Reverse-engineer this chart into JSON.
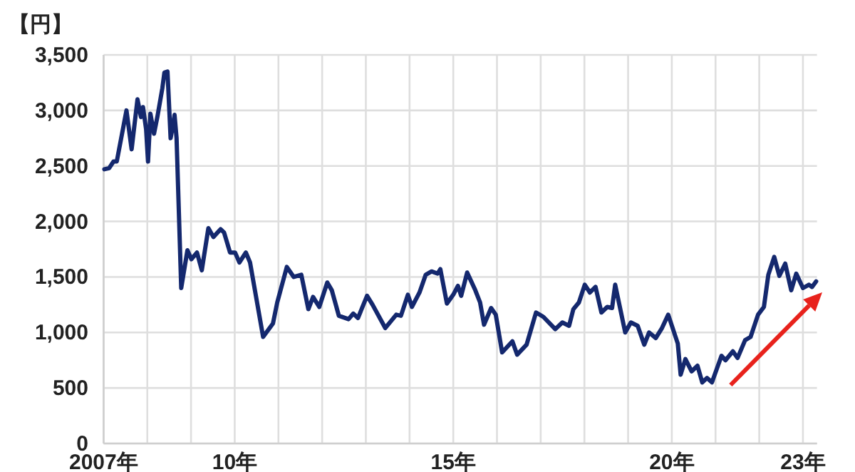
{
  "chart_data": {
    "type": "line",
    "ylabel": "【円】",
    "x": [
      "2007-01-07",
      "2007-02-16",
      "2007-03-25",
      "2007-04-21",
      "2007-07-11",
      "2007-08-23",
      "2007-10-11",
      "2007-11-09",
      "2007-11-26",
      "2007-12-22",
      "2008-01-07",
      "2008-01-27",
      "2008-02-26",
      "2008-03-25",
      "2008-05-06",
      "2008-05-23",
      "2008-06-18",
      "2008-07-14",
      "2008-08-06",
      "2008-08-16",
      "2008-09-02",
      "2008-10-11",
      "2008-12-02",
      "2009-01-04",
      "2009-02-20",
      "2009-04-01",
      "2009-05-26",
      "2009-07-07",
      "2009-09-05",
      "2009-10-04",
      "2009-11-23",
      "2010-01-04",
      "2010-02-09",
      "2010-04-04",
      "2010-05-09",
      "2010-08-26",
      "2010-11-16",
      "2010-12-22",
      "2011-03-12",
      "2011-05-09",
      "2011-07-11",
      "2011-09-08",
      "2011-10-17",
      "2011-12-08",
      "2012-02-13",
      "2012-03-22",
      "2012-05-20",
      "2012-08-09",
      "2012-09-18",
      "2012-10-27",
      "2013-01-11",
      "2013-02-26",
      "2013-06-12",
      "2013-09-12",
      "2013-10-21",
      "2013-12-18",
      "2014-01-21",
      "2014-03-25",
      "2014-05-16",
      "2014-07-04",
      "2014-08-23",
      "2014-09-15",
      "2014-11-09",
      "2015-01-01",
      "2015-02-09",
      "2015-03-08",
      "2015-04-27",
      "2015-07-04",
      "2015-08-13",
      "2015-09-15",
      "2015-11-13",
      "2015-12-22",
      "2016-02-13",
      "2016-05-09",
      "2016-06-18",
      "2016-09-05",
      "2016-11-23",
      "2017-01-24",
      "2017-05-03",
      "2017-07-01",
      "2017-08-26",
      "2017-10-01",
      "2017-11-16",
      "2018-01-04",
      "2018-02-16",
      "2018-04-04",
      "2018-05-23",
      "2018-07-11",
      "2018-08-20",
      "2018-09-15",
      "2018-12-08",
      "2019-01-24",
      "2019-03-22",
      "2019-05-16",
      "2019-06-25",
      "2019-08-20",
      "2019-10-11",
      "2019-12-02",
      "2020-02-20",
      "2020-03-15",
      "2020-04-24",
      "2020-06-15",
      "2020-08-03",
      "2020-09-12",
      "2020-10-21",
      "2020-12-02",
      "2021-02-20",
      "2021-03-25",
      "2021-05-26",
      "2021-07-04",
      "2021-09-05",
      "2021-10-21",
      "2021-12-22",
      "2022-02-09",
      "2022-03-18",
      "2022-05-06",
      "2022-06-18",
      "2022-08-06",
      "2022-09-25",
      "2022-11-06",
      "2023-01-01",
      "2023-02-20",
      "2023-03-18",
      "2023-04-21"
    ],
    "series": [
      {
        "color": "#14286e",
        "values": [
          2470,
          2480,
          2540,
          2540,
          3000,
          2650,
          3100,
          2940,
          3030,
          2830,
          2540,
          2970,
          2790,
          2940,
          3200,
          3340,
          3350,
          2750,
          2880,
          2960,
          2750,
          1400,
          1740,
          1660,
          1720,
          1560,
          1940,
          1860,
          1930,
          1900,
          1720,
          1720,
          1630,
          1720,
          1630,
          960,
          1080,
          1270,
          1590,
          1500,
          1520,
          1210,
          1320,
          1230,
          1450,
          1380,
          1150,
          1120,
          1170,
          1130,
          1330,
          1250,
          1040,
          1160,
          1150,
          1340,
          1230,
          1360,
          1520,
          1550,
          1530,
          1570,
          1260,
          1340,
          1420,
          1330,
          1540,
          1380,
          1270,
          1070,
          1220,
          1160,
          820,
          920,
          800,
          890,
          1180,
          1140,
          1030,
          1090,
          1060,
          1210,
          1270,
          1430,
          1360,
          1410,
          1180,
          1230,
          1220,
          1430,
          1000,
          1090,
          1060,
          890,
          1000,
          950,
          1040,
          1160,
          900,
          620,
          760,
          650,
          700,
          550,
          590,
          550,
          790,
          750,
          830,
          770,
          930,
          960,
          1160,
          1230,
          1520,
          1680,
          1510,
          1620,
          1380,
          1530,
          1400,
          1430,
          1410,
          1460
        ]
      }
    ],
    "xlim": [
      "2007-01-01",
      "2023-04-28"
    ],
    "xticks": [
      {
        "value": "2007",
        "label": "2007年"
      },
      {
        "value": "2008",
        "label": null
      },
      {
        "value": "2009",
        "label": null
      },
      {
        "value": "2010",
        "label": "10年"
      },
      {
        "value": "2011",
        "label": null
      },
      {
        "value": "2012",
        "label": null
      },
      {
        "value": "2013",
        "label": null
      },
      {
        "value": "2014",
        "label": null
      },
      {
        "value": "2015",
        "label": "15年"
      },
      {
        "value": "2016",
        "label": null
      },
      {
        "value": "2017",
        "label": null
      },
      {
        "value": "2018",
        "label": null
      },
      {
        "value": "2019",
        "label": null
      },
      {
        "value": "2020",
        "label": "20年"
      },
      {
        "value": "2021",
        "label": null
      },
      {
        "value": "2022",
        "label": null
      },
      {
        "value": "2023",
        "label": "23年"
      }
    ],
    "ylim": [
      0,
      3500
    ],
    "yticks": [
      0,
      {
        "value": 500,
        "label": "500"
      },
      {
        "value": 1000,
        "label": "1,000"
      },
      {
        "value": 1500,
        "label": "1,500"
      },
      {
        "value": 2000,
        "label": "2,000"
      },
      {
        "value": 2500,
        "label": "2,500"
      },
      {
        "value": 3000,
        "label": "3,000"
      },
      {
        "value": 3500,
        "label": "3,500"
      }
    ],
    "grid": true,
    "line_style": "solid"
  }
}
